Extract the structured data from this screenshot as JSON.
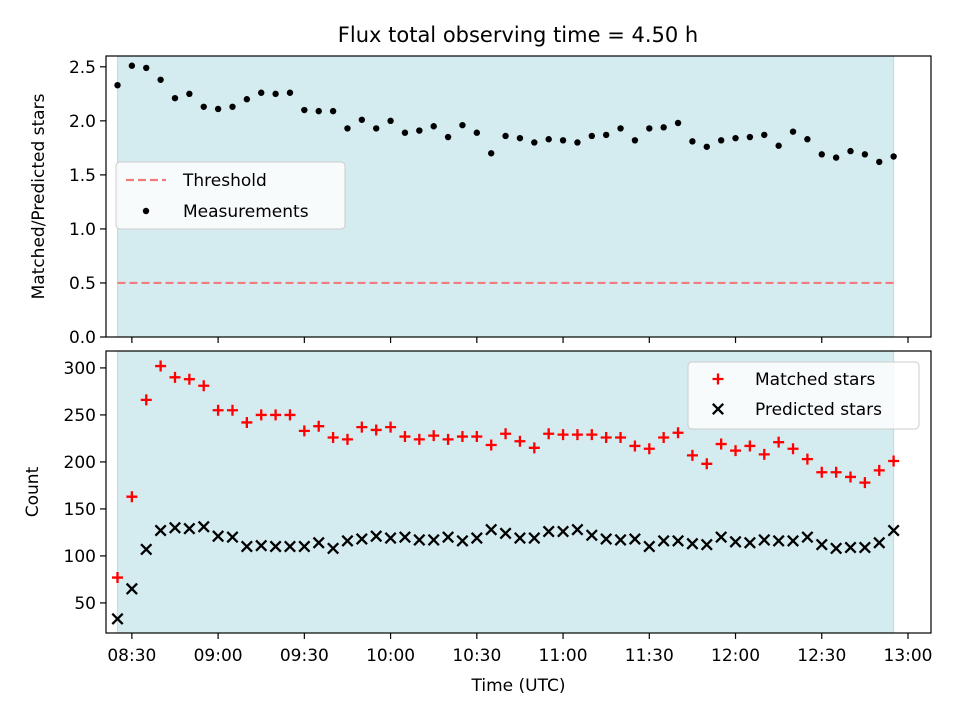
{
  "chart_data": [
    {
      "type": "scatter",
      "title": "Flux total observing time = 4.50 h",
      "xlabel": "",
      "ylabel": "Matched/Predicted stars",
      "xlim": [
        "08:21",
        "13:08"
      ],
      "ylim": [
        0,
        2.6
      ],
      "y_ticks": [
        0.0,
        0.5,
        1.0,
        1.5,
        2.0,
        2.5
      ],
      "y_tick_labels": [
        "0.0",
        "0.5",
        "1.0",
        "1.5",
        "2.0",
        "2.5"
      ],
      "grid": false,
      "legend_position": "center-left",
      "observing_window": [
        "08:25",
        "12:55"
      ],
      "window_color": "#d4ebf0",
      "threshold": {
        "name": "Threshold",
        "value": 0.5,
        "color": "#f07b7b",
        "style": "dashed"
      },
      "series": [
        {
          "name": "Measurements",
          "color": "#000000",
          "marker": "dot",
          "x": [
            "08:25",
            "08:30",
            "08:35",
            "08:40",
            "08:45",
            "08:50",
            "08:55",
            "09:00",
            "09:05",
            "09:10",
            "09:15",
            "09:20",
            "09:25",
            "09:30",
            "09:35",
            "09:40",
            "09:45",
            "09:50",
            "09:55",
            "10:00",
            "10:05",
            "10:10",
            "10:15",
            "10:20",
            "10:25",
            "10:30",
            "10:35",
            "10:40",
            "10:45",
            "10:50",
            "10:55",
            "11:00",
            "11:05",
            "11:10",
            "11:15",
            "11:20",
            "11:25",
            "11:30",
            "11:35",
            "11:40",
            "11:45",
            "11:50",
            "11:55",
            "12:00",
            "12:05",
            "12:10",
            "12:15",
            "12:20",
            "12:25",
            "12:30",
            "12:35",
            "12:40",
            "12:45",
            "12:50",
            "12:55"
          ],
          "y": [
            2.33,
            2.51,
            2.49,
            2.38,
            2.21,
            2.25,
            2.13,
            2.11,
            2.13,
            2.2,
            2.26,
            2.25,
            2.26,
            2.1,
            2.09,
            2.09,
            1.93,
            2.01,
            1.93,
            2.0,
            1.89,
            1.91,
            1.95,
            1.85,
            1.96,
            1.89,
            1.7,
            1.86,
            1.84,
            1.8,
            1.83,
            1.82,
            1.8,
            1.86,
            1.87,
            1.93,
            1.82,
            1.93,
            1.94,
            1.98,
            1.81,
            1.76,
            1.82,
            1.84,
            1.85,
            1.87,
            1.77,
            1.9,
            1.83,
            1.69,
            1.66,
            1.72,
            1.69,
            1.62,
            1.67
          ]
        }
      ]
    },
    {
      "type": "scatter",
      "title": "",
      "xlabel": "Time (UTC)",
      "ylabel": "Count",
      "xlim": [
        "08:21",
        "13:08"
      ],
      "ylim": [
        18,
        318
      ],
      "y_ticks": [
        50,
        100,
        150,
        200,
        250,
        300
      ],
      "y_tick_labels": [
        "50",
        "100",
        "150",
        "200",
        "250",
        "300"
      ],
      "x_ticks": [
        "08:30",
        "09:00",
        "09:30",
        "10:00",
        "10:30",
        "11:00",
        "11:30",
        "12:00",
        "12:30",
        "13:00"
      ],
      "x_tick_labels": [
        "08:30",
        "09:00",
        "09:30",
        "10:00",
        "10:30",
        "11:00",
        "11:30",
        "12:00",
        "12:30",
        "13:00"
      ],
      "grid": false,
      "legend_position": "top-right",
      "observing_window": [
        "08:25",
        "12:55"
      ],
      "window_color": "#d4ebf0",
      "series": [
        {
          "name": "Matched stars",
          "color": "#ff0000",
          "marker": "plus",
          "x": [
            "08:25",
            "08:30",
            "08:35",
            "08:40",
            "08:45",
            "08:50",
            "08:55",
            "09:00",
            "09:05",
            "09:10",
            "09:15",
            "09:20",
            "09:25",
            "09:30",
            "09:35",
            "09:40",
            "09:45",
            "09:50",
            "09:55",
            "10:00",
            "10:05",
            "10:10",
            "10:15",
            "10:20",
            "10:25",
            "10:30",
            "10:35",
            "10:40",
            "10:45",
            "10:50",
            "10:55",
            "11:00",
            "11:05",
            "11:10",
            "11:15",
            "11:20",
            "11:25",
            "11:30",
            "11:35",
            "11:40",
            "11:45",
            "11:50",
            "11:55",
            "12:00",
            "12:05",
            "12:10",
            "12:15",
            "12:20",
            "12:25",
            "12:30",
            "12:35",
            "12:40",
            "12:45",
            "12:50",
            "12:55"
          ],
          "y": [
            77,
            163,
            266,
            302,
            290,
            288,
            281,
            255,
            255,
            242,
            250,
            250,
            250,
            233,
            238,
            226,
            224,
            237,
            234,
            237,
            227,
            224,
            228,
            224,
            227,
            227,
            218,
            230,
            222,
            215,
            230,
            229,
            229,
            229,
            226,
            226,
            217,
            214,
            226,
            231,
            207,
            198,
            219,
            212,
            217,
            208,
            221,
            214,
            203,
            189,
            189,
            184,
            178,
            191,
            201
          ]
        },
        {
          "name": "Predicted stars",
          "color": "#000000",
          "marker": "x",
          "x": [
            "08:25",
            "08:30",
            "08:35",
            "08:40",
            "08:45",
            "08:50",
            "08:55",
            "09:00",
            "09:05",
            "09:10",
            "09:15",
            "09:20",
            "09:25",
            "09:30",
            "09:35",
            "09:40",
            "09:45",
            "09:50",
            "09:55",
            "10:00",
            "10:05",
            "10:10",
            "10:15",
            "10:20",
            "10:25",
            "10:30",
            "10:35",
            "10:40",
            "10:45",
            "10:50",
            "10:55",
            "11:00",
            "11:05",
            "11:10",
            "11:15",
            "11:20",
            "11:25",
            "11:30",
            "11:35",
            "11:40",
            "11:45",
            "11:50",
            "11:55",
            "12:00",
            "12:05",
            "12:10",
            "12:15",
            "12:20",
            "12:25",
            "12:30",
            "12:35",
            "12:40",
            "12:45",
            "12:50",
            "12:55"
          ],
          "y": [
            33,
            65,
            107,
            127,
            130,
            129,
            131,
            121,
            120,
            110,
            111,
            110,
            110,
            110,
            114,
            108,
            116,
            118,
            121,
            119,
            120,
            117,
            117,
            120,
            116,
            119,
            128,
            124,
            119,
            119,
            126,
            126,
            128,
            122,
            118,
            117,
            118,
            110,
            116,
            116,
            113,
            112,
            120,
            115,
            114,
            117,
            116,
            116,
            120,
            112,
            108,
            109,
            109,
            114,
            127
          ]
        }
      ]
    }
  ]
}
